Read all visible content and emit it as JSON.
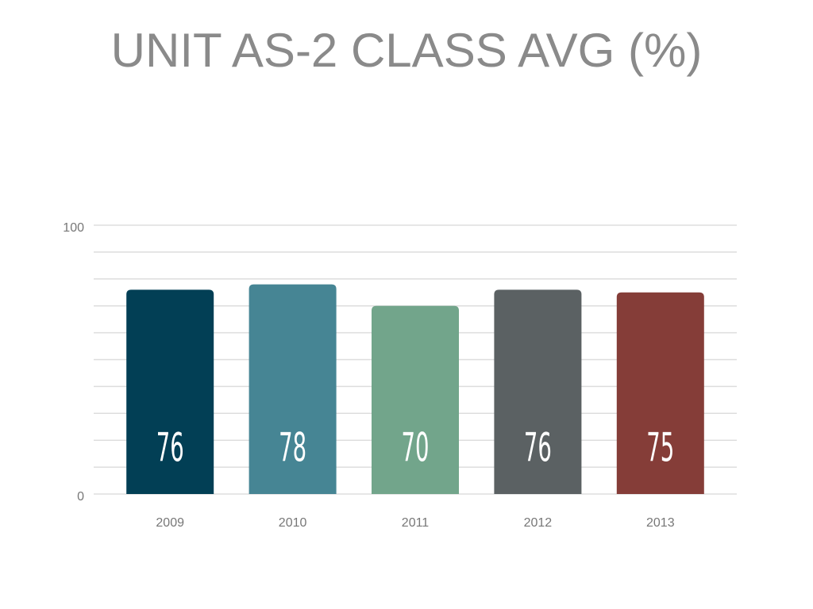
{
  "chart_data": {
    "type": "bar",
    "title": "UNIT AS-2 CLASS AVG (%)",
    "categories": [
      "2009",
      "2010",
      "2011",
      "2012",
      "2013"
    ],
    "values": [
      76,
      78,
      70,
      76,
      75
    ],
    "colors": [
      "#023f55",
      "#468594",
      "#72a58b",
      "#5b6163",
      "#853d38"
    ],
    "ylim": [
      0,
      100
    ],
    "yticks": [
      0,
      100
    ],
    "minor_grid": [
      10,
      20,
      30,
      40,
      50,
      60,
      70,
      80,
      90
    ],
    "grid": true,
    "data_labels": true
  }
}
